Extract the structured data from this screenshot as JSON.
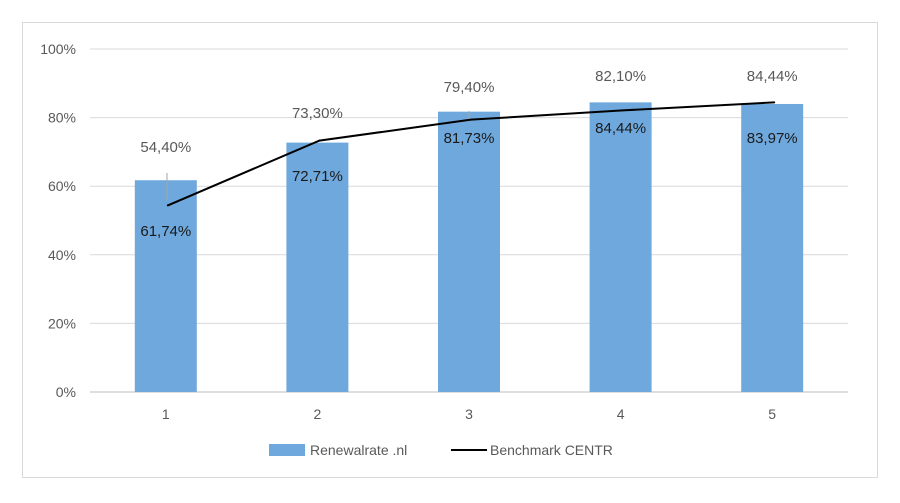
{
  "chart_data": {
    "type": "bar",
    "categories": [
      "1",
      "2",
      "3",
      "4",
      "5"
    ],
    "series": [
      {
        "name": "Renewalrate .nl",
        "kind": "bar",
        "color": "#6fa8dc",
        "values": [
          61.74,
          72.71,
          81.73,
          84.44,
          83.97
        ],
        "labels": [
          "61,74%",
          "72,71%",
          "81,73%",
          "84,44%",
          "83,97%"
        ]
      },
      {
        "name": "Benchmark CENTR",
        "kind": "line",
        "color": "#000000",
        "values": [
          54.4,
          73.3,
          79.4,
          82.1,
          84.44
        ],
        "labels": [
          "54,40%",
          "73,30%",
          "79,40%",
          "82,10%",
          "84,44%"
        ]
      }
    ],
    "y_ticks": [
      0,
      20,
      40,
      60,
      80,
      100
    ],
    "y_tick_labels": [
      "0%",
      "20%",
      "40%",
      "60%",
      "80%",
      "100%"
    ],
    "ylim": [
      0,
      100
    ],
    "grid": true,
    "legend_position": "bottom",
    "title": "",
    "xlabel": "",
    "ylabel": ""
  }
}
